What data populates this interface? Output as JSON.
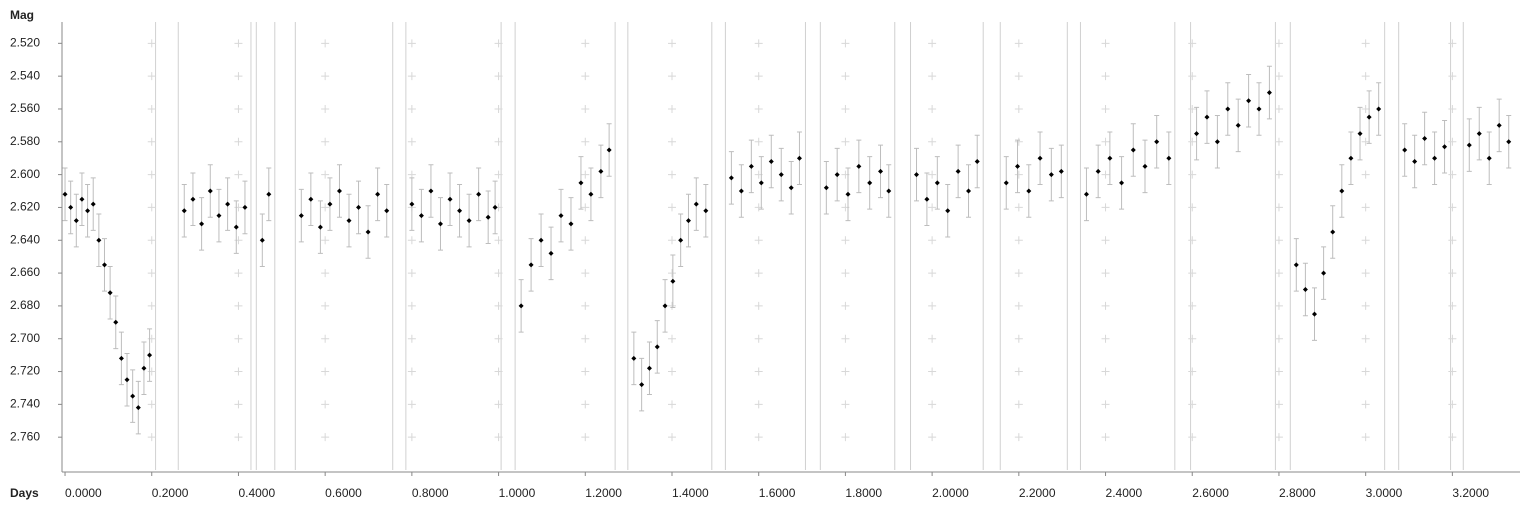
{
  "chart_data": {
    "type": "errorscatter",
    "ylabel": "Mag",
    "xlabel": "Days",
    "x": [
      0.0,
      0.013,
      0.026,
      0.039,
      0.052,
      0.065,
      0.078,
      0.091,
      0.104,
      0.117,
      0.13,
      0.143,
      0.156,
      0.169,
      0.182,
      0.195,
      0.275,
      0.295,
      0.315,
      0.335,
      0.355,
      0.375,
      0.395,
      0.415,
      0.455,
      0.47,
      0.545,
      0.567,
      0.589,
      0.611,
      0.633,
      0.655,
      0.677,
      0.699,
      0.721,
      0.742,
      0.8,
      0.822,
      0.844,
      0.866,
      0.888,
      0.91,
      0.932,
      0.954,
      0.976,
      0.992,
      1.052,
      1.075,
      1.098,
      1.121,
      1.144,
      1.167,
      1.19,
      1.213,
      1.236,
      1.255,
      1.312,
      1.33,
      1.348,
      1.366,
      1.384,
      1.402,
      1.42,
      1.438,
      1.456,
      1.478,
      1.537,
      1.56,
      1.583,
      1.606,
      1.629,
      1.652,
      1.675,
      1.694,
      1.756,
      1.781,
      1.806,
      1.831,
      1.856,
      1.881,
      1.9,
      1.964,
      1.988,
      2.012,
      2.036,
      2.06,
      2.084,
      2.104,
      2.171,
      2.197,
      2.223,
      2.249,
      2.275,
      2.298,
      2.356,
      2.383,
      2.41,
      2.437,
      2.464,
      2.491,
      2.518,
      2.546,
      2.61,
      2.634,
      2.658,
      2.682,
      2.706,
      2.73,
      2.754,
      2.778,
      2.84,
      2.861,
      2.882,
      2.903,
      2.924,
      2.945,
      2.966,
      2.987,
      3.008,
      3.03,
      3.09,
      3.113,
      3.136,
      3.159,
      3.182,
      3.239,
      3.262,
      3.285,
      3.308,
      3.33
    ],
    "values": [
      2.612,
      2.62,
      2.628,
      2.615,
      2.622,
      2.618,
      2.64,
      2.655,
      2.672,
      2.69,
      2.712,
      2.725,
      2.735,
      2.742,
      2.718,
      2.71,
      2.622,
      2.615,
      2.63,
      2.61,
      2.625,
      2.618,
      2.632,
      2.62,
      2.64,
      2.612,
      2.625,
      2.615,
      2.632,
      2.618,
      2.61,
      2.628,
      2.62,
      2.635,
      2.612,
      2.622,
      2.618,
      2.625,
      2.61,
      2.63,
      2.615,
      2.622,
      2.628,
      2.612,
      2.626,
      2.62,
      2.68,
      2.655,
      2.64,
      2.648,
      2.625,
      2.63,
      2.605,
      2.612,
      2.598,
      2.585,
      2.712,
      2.728,
      2.718,
      2.705,
      2.68,
      2.665,
      2.64,
      2.628,
      2.618,
      2.622,
      2.602,
      2.61,
      2.595,
      2.605,
      2.592,
      2.6,
      2.608,
      2.59,
      2.608,
      2.6,
      2.612,
      2.595,
      2.605,
      2.598,
      2.61,
      2.6,
      2.615,
      2.605,
      2.622,
      2.598,
      2.61,
      2.592,
      2.605,
      2.595,
      2.61,
      2.59,
      2.6,
      2.598,
      2.612,
      2.598,
      2.59,
      2.605,
      2.585,
      2.595,
      2.58,
      2.59,
      2.575,
      2.565,
      2.58,
      2.56,
      2.57,
      2.555,
      2.56,
      2.55,
      2.655,
      2.67,
      2.685,
      2.66,
      2.635,
      2.61,
      2.59,
      2.575,
      2.565,
      2.56,
      2.585,
      2.592,
      2.578,
      2.59,
      2.583,
      2.582,
      2.575,
      2.59,
      2.57,
      2.58
    ],
    "error": 0.016,
    "color": "#000000",
    "error_color": "#bdbdbd",
    "xlim": [
      -0.007,
      3.356
    ],
    "ylim": [
      2.507,
      2.78
    ],
    "y_inverted": true,
    "xticks": [
      {
        "value": 0,
        "label": "0.0000"
      },
      {
        "value": 0.2,
        "label": "0.2000"
      },
      {
        "value": 0.4,
        "label": "0.4000"
      },
      {
        "value": 0.6,
        "label": "0.6000"
      },
      {
        "value": 0.8,
        "label": "0.8000"
      },
      {
        "value": 1.0,
        "label": "1.0000"
      },
      {
        "value": 1.2,
        "label": "1.2000"
      },
      {
        "value": 1.4,
        "label": "1.4000"
      },
      {
        "value": 1.6,
        "label": "1.6000"
      },
      {
        "value": 1.8,
        "label": "1.8000"
      },
      {
        "value": 2.0,
        "label": "2.0000"
      },
      {
        "value": 2.2,
        "label": "2.2000"
      },
      {
        "value": 2.4,
        "label": "2.4000"
      },
      {
        "value": 2.6,
        "label": "2.6000"
      },
      {
        "value": 2.8,
        "label": "2.8000"
      },
      {
        "value": 3.0,
        "label": "3.0000"
      },
      {
        "value": 3.2,
        "label": "3.2000"
      }
    ],
    "yticks": [
      {
        "value": 2.52,
        "label": "2.520"
      },
      {
        "value": 2.54,
        "label": "2.540"
      },
      {
        "value": 2.56,
        "label": "2.560"
      },
      {
        "value": 2.58,
        "label": "2.580"
      },
      {
        "value": 2.6,
        "label": "2.600"
      },
      {
        "value": 2.62,
        "label": "2.620"
      },
      {
        "value": 2.64,
        "label": "2.640"
      },
      {
        "value": 2.66,
        "label": "2.660"
      },
      {
        "value": 2.68,
        "label": "2.680"
      },
      {
        "value": 2.7,
        "label": "2.700"
      },
      {
        "value": 2.72,
        "label": "2.720"
      },
      {
        "value": 2.74,
        "label": "2.740"
      },
      {
        "value": 2.76,
        "label": "2.760"
      }
    ],
    "grid": "plus"
  }
}
